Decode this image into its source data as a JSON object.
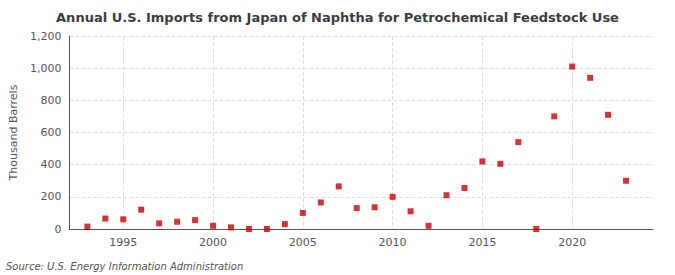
{
  "chart_data": {
    "type": "scatter",
    "title": "Annual U.S. Imports from Japan of Naphtha for Petrochemical Feedstock Use",
    "ylabel": "Thousand Barrels",
    "source": "Source: U.S. Energy Information Administration",
    "x": [
      1993,
      1994,
      1995,
      1996,
      1997,
      1998,
      1999,
      2000,
      2001,
      2002,
      2003,
      2004,
      2005,
      2006,
      2007,
      2008,
      2009,
      2010,
      2011,
      2012,
      2013,
      2014,
      2015,
      2016,
      2017,
      2018,
      2019,
      2020,
      2021,
      2022,
      2023
    ],
    "values": [
      15,
      65,
      60,
      120,
      35,
      45,
      55,
      20,
      10,
      0,
      0,
      30,
      100,
      165,
      265,
      130,
      135,
      200,
      110,
      20,
      210,
      255,
      420,
      405,
      540,
      0,
      700,
      1010,
      940,
      710,
      300
    ],
    "color": "#cc0000",
    "marker": "square",
    "xlim": [
      1992,
      2024.5
    ],
    "xticks": [
      1995,
      2000,
      2005,
      2010,
      2015,
      2020
    ],
    "ylim": [
      0,
      1200
    ],
    "yticks": [
      0,
      200,
      400,
      600,
      800,
      {
        "value": 1000,
        "label": "1,000"
      },
      {
        "value": 1200,
        "label": "1,200"
      }
    ],
    "grid": true
  }
}
